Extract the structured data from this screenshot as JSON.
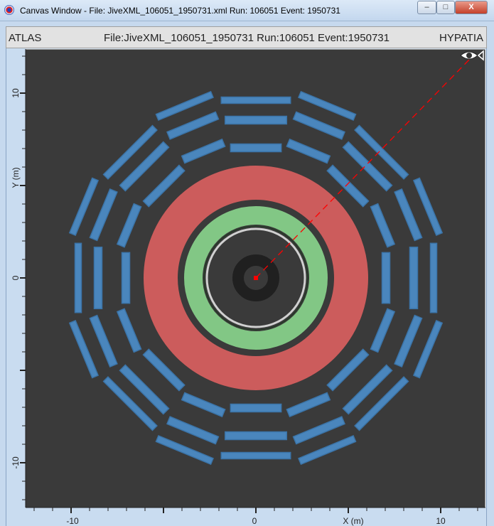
{
  "window": {
    "title": "Canvas Window -  File: JiveXML_106051_1950731.xml  Run: 106051  Event: 1950731",
    "minimize_label": "–",
    "maximize_label": "□",
    "close_label": "X"
  },
  "header": {
    "left": "ATLAS",
    "center": "File:JiveXML_106051_1950731 Run:106051 Event:1950731",
    "right": "HYPATIA"
  },
  "axes": {
    "x_label": "X (m)",
    "y_label": "Y (m)",
    "x_ticks": [
      "-10",
      "0",
      "10"
    ],
    "y_ticks": [
      "10",
      "0",
      "-10"
    ],
    "range_m": [
      -12.5,
      12.5
    ]
  },
  "colors": {
    "background": "#3a3a3a",
    "muon": "#4a86bd",
    "calorimeter_hadronic": "#cc5c5c",
    "calorimeter_em": "#82c785",
    "solenoid": "#d0d0d0",
    "track": "#ff0000",
    "inner_detector": "#202020"
  },
  "icons": {
    "eye": "eye-icon",
    "app": "hypatia-app-icon"
  }
}
